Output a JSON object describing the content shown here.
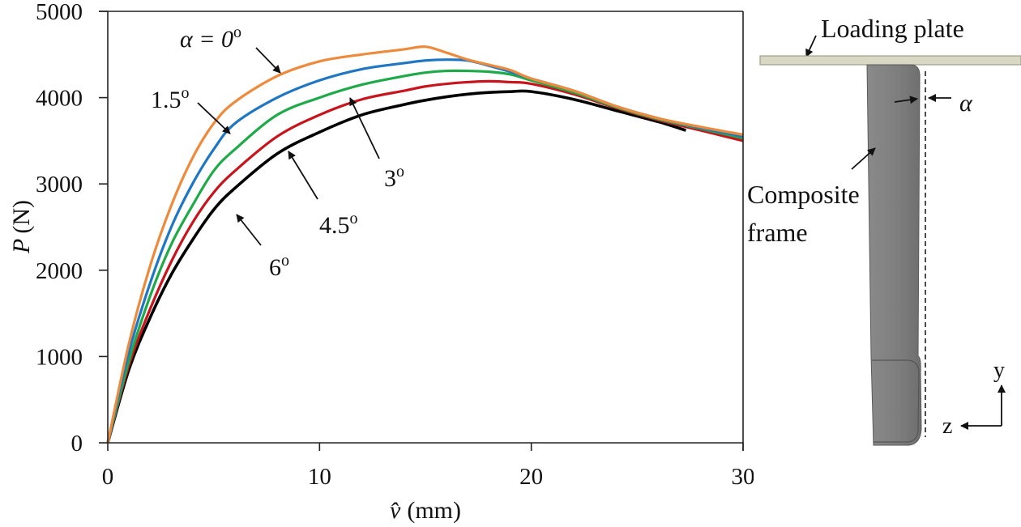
{
  "chart_data": {
    "type": "line",
    "title": "",
    "xlabel": "v̂ (mm)",
    "xlabel_symbol": "v̂",
    "xlabel_unit": "(mm)",
    "ylabel": "P (N)",
    "ylabel_symbol": "P",
    "ylabel_unit": "(N)",
    "xlim": [
      0,
      30
    ],
    "ylim": [
      0,
      5000
    ],
    "xticks": [
      0,
      10,
      20,
      30
    ],
    "yticks": [
      0,
      1000,
      2000,
      3000,
      4000,
      5000
    ],
    "grid": false,
    "legend": "none (inline arrow annotations)",
    "series": [
      {
        "name": "α = 0°",
        "color": "#ee8a3c",
        "x": [
          0,
          1,
          2,
          3,
          4,
          5,
          6,
          8,
          10,
          12,
          14,
          15,
          16,
          17,
          18,
          19,
          20,
          22,
          24,
          26,
          28,
          30
        ],
        "y": [
          0,
          1150,
          2050,
          2750,
          3300,
          3700,
          3950,
          4250,
          4420,
          4500,
          4560,
          4590,
          4520,
          4440,
          4380,
          4320,
          4220,
          4080,
          3900,
          3760,
          3660,
          3570
        ]
      },
      {
        "name": "1.5°",
        "color": "#1f77c4",
        "x": [
          0,
          1,
          2,
          3,
          4,
          5,
          6,
          8,
          10,
          12,
          14,
          15,
          16,
          17,
          18,
          19,
          20,
          22,
          24,
          26,
          28,
          30
        ],
        "y": [
          0,
          1050,
          1850,
          2500,
          3000,
          3400,
          3700,
          4000,
          4200,
          4330,
          4400,
          4430,
          4440,
          4430,
          4370,
          4300,
          4220,
          4080,
          3900,
          3760,
          3650,
          3550
        ]
      },
      {
        "name": "3°",
        "color": "#1faa4a",
        "x": [
          0,
          1,
          2,
          3,
          4,
          5,
          6,
          8,
          10,
          12,
          14,
          15,
          16,
          17,
          18,
          19,
          20,
          22,
          24,
          26,
          28,
          30
        ],
        "y": [
          0,
          950,
          1700,
          2300,
          2750,
          3150,
          3400,
          3800,
          4000,
          4150,
          4250,
          4290,
          4310,
          4310,
          4300,
          4270,
          4200,
          4060,
          3890,
          3750,
          3640,
          3530
        ]
      },
      {
        "name": "4.5°",
        "color": "#c8141c",
        "x": [
          0,
          1,
          2,
          3,
          4,
          5,
          6,
          8,
          10,
          12,
          14,
          15,
          16,
          17,
          18,
          19,
          20,
          22,
          24,
          26,
          28,
          30
        ],
        "y": [
          0,
          900,
          1550,
          2100,
          2550,
          2900,
          3150,
          3550,
          3800,
          3980,
          4080,
          4130,
          4160,
          4180,
          4190,
          4180,
          4160,
          4040,
          3880,
          3740,
          3620,
          3500
        ]
      },
      {
        "name": "6°",
        "color": "#000000",
        "x": [
          0,
          1,
          2,
          3,
          4,
          5,
          6,
          8,
          10,
          12,
          14,
          15,
          16,
          17,
          18,
          19,
          20,
          22,
          24,
          26,
          27.3
        ],
        "y": [
          0,
          850,
          1450,
          1950,
          2350,
          2700,
          2950,
          3350,
          3600,
          3800,
          3920,
          3970,
          4010,
          4040,
          4060,
          4070,
          4070,
          3980,
          3850,
          3720,
          3620
        ]
      }
    ],
    "annotations": [
      {
        "text_main": "α = 0",
        "text_sup": "o",
        "points_to": "α = 0°",
        "at_x": 8.2
      },
      {
        "text_main": "1.5",
        "text_sup": "o",
        "points_to": "1.5°",
        "at_x": 5.6
      },
      {
        "text_main": "3",
        "text_sup": "o",
        "points_to": "3°",
        "at_x": 11.4
      },
      {
        "text_main": "4.5",
        "text_sup": "o",
        "points_to": "4.5°",
        "at_x": 8.5
      },
      {
        "text_main": "6",
        "text_sup": "o",
        "points_to": "6°",
        "at_x": 6.2
      }
    ]
  },
  "diagram": {
    "loading_plate_label": "Loading plate",
    "frame_label_line1": "Composite",
    "frame_label_line2": "frame",
    "angle_label": "α",
    "axis_y_label": "y",
    "axis_z_label": "z",
    "plate_color": "#d6d6c2",
    "frame_color": "#828282"
  }
}
